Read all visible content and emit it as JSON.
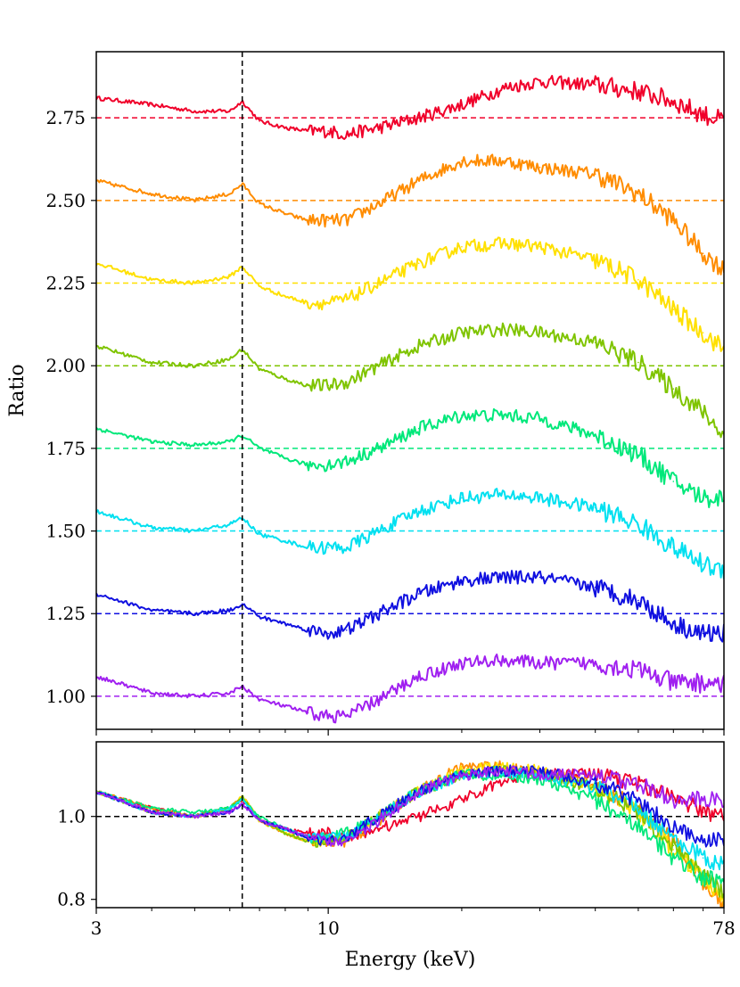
{
  "chart_data": [
    {
      "type": "line",
      "panel": "top",
      "ylabel": "Ratio",
      "xlabel": "",
      "xscale": "log",
      "xlim": [
        3,
        78
      ],
      "ylim": [
        0.9,
        2.95
      ],
      "yticks": [
        1.0,
        1.25,
        1.5,
        1.75,
        2.0,
        2.25,
        2.5,
        2.75
      ],
      "ytick_labels": [
        "1.00",
        "1.25",
        "1.50",
        "1.75",
        "2.00",
        "2.25",
        "2.50",
        "2.75"
      ],
      "xticks": [
        3,
        10,
        78
      ],
      "vline_x": 6.4,
      "x": [
        3,
        4,
        5,
        6,
        6.4,
        7,
        8,
        9,
        10,
        11,
        13,
        16,
        20,
        25,
        30,
        40,
        50,
        60,
        70,
        78
      ],
      "series": [
        {
          "color": "#f0002a",
          "baseline": 2.75,
          "values": [
            2.81,
            2.79,
            2.77,
            2.77,
            2.8,
            2.74,
            2.72,
            2.71,
            2.71,
            2.7,
            2.72,
            2.75,
            2.79,
            2.84,
            2.86,
            2.85,
            2.83,
            2.8,
            2.76,
            2.74
          ]
        },
        {
          "color": "#ff8c00",
          "baseline": 2.5,
          "values": [
            2.56,
            2.52,
            2.5,
            2.52,
            2.55,
            2.49,
            2.46,
            2.44,
            2.44,
            2.44,
            2.49,
            2.56,
            2.62,
            2.62,
            2.6,
            2.58,
            2.52,
            2.44,
            2.34,
            2.29
          ]
        },
        {
          "color": "#ffe000",
          "baseline": 2.25,
          "values": [
            2.31,
            2.26,
            2.25,
            2.27,
            2.3,
            2.24,
            2.21,
            2.19,
            2.19,
            2.2,
            2.25,
            2.31,
            2.36,
            2.37,
            2.36,
            2.32,
            2.26,
            2.17,
            2.1,
            2.05
          ]
        },
        {
          "color": "#7fc400",
          "baseline": 2.0,
          "values": [
            2.06,
            2.01,
            2.0,
            2.02,
            2.05,
            1.99,
            1.96,
            1.94,
            1.94,
            1.95,
            2.0,
            2.06,
            2.1,
            2.11,
            2.1,
            2.07,
            2.01,
            1.93,
            1.86,
            1.79
          ]
        },
        {
          "color": "#00e87a",
          "baseline": 1.75,
          "values": [
            1.81,
            1.77,
            1.76,
            1.77,
            1.79,
            1.75,
            1.72,
            1.7,
            1.7,
            1.71,
            1.75,
            1.81,
            1.85,
            1.85,
            1.84,
            1.79,
            1.73,
            1.65,
            1.6,
            1.6
          ]
        },
        {
          "color": "#00e0f0",
          "baseline": 1.5,
          "values": [
            1.56,
            1.51,
            1.5,
            1.52,
            1.54,
            1.49,
            1.47,
            1.45,
            1.45,
            1.45,
            1.5,
            1.56,
            1.6,
            1.61,
            1.6,
            1.57,
            1.52,
            1.45,
            1.4,
            1.38
          ]
        },
        {
          "color": "#1010e0",
          "baseline": 1.25,
          "values": [
            1.31,
            1.26,
            1.25,
            1.26,
            1.28,
            1.24,
            1.22,
            1.2,
            1.19,
            1.2,
            1.25,
            1.31,
            1.35,
            1.36,
            1.36,
            1.33,
            1.29,
            1.22,
            1.19,
            1.19
          ]
        },
        {
          "color": "#a020f0",
          "baseline": 1.0,
          "values": [
            1.06,
            1.01,
            1.0,
            1.01,
            1.03,
            0.99,
            0.97,
            0.95,
            0.94,
            0.94,
            0.99,
            1.06,
            1.1,
            1.11,
            1.1,
            1.1,
            1.08,
            1.04,
            1.04,
            1.04
          ]
        }
      ]
    },
    {
      "type": "line",
      "panel": "bottom",
      "xlabel": "Energy (keV)",
      "ylabel": "",
      "xscale": "log",
      "xlim": [
        3,
        78
      ],
      "ylim": [
        0.78,
        1.18
      ],
      "yticks": [
        0.8,
        1.0
      ],
      "ytick_labels": [
        "0.8",
        "1.0"
      ],
      "xticks": [
        3,
        10,
        78
      ],
      "xtick_labels": [
        "3",
        "10",
        "78"
      ],
      "vline_x": 6.4,
      "hline_y": 1.0,
      "x": [
        3,
        4,
        5,
        6,
        6.4,
        7,
        8,
        9,
        10,
        11,
        13,
        16,
        20,
        25,
        30,
        40,
        50,
        60,
        70,
        78
      ],
      "series": [
        {
          "color": "#f0002a",
          "values": [
            1.06,
            1.02,
            1.0,
            1.02,
            1.04,
            0.99,
            0.97,
            0.96,
            0.96,
            0.95,
            0.97,
            1.0,
            1.04,
            1.09,
            1.11,
            1.1,
            1.08,
            1.05,
            1.01,
            1.0
          ]
        },
        {
          "color": "#ff8c00",
          "values": [
            1.06,
            1.02,
            1.0,
            1.02,
            1.05,
            0.99,
            0.96,
            0.94,
            0.94,
            0.94,
            0.99,
            1.06,
            1.12,
            1.12,
            1.1,
            1.08,
            1.02,
            0.94,
            0.84,
            0.79
          ]
        },
        {
          "color": "#ffe000",
          "values": [
            1.06,
            1.01,
            1.0,
            1.02,
            1.05,
            0.99,
            0.96,
            0.94,
            0.94,
            0.95,
            1.0,
            1.06,
            1.11,
            1.12,
            1.11,
            1.07,
            1.01,
            0.92,
            0.85,
            0.8
          ]
        },
        {
          "color": "#7fc400",
          "values": [
            1.06,
            1.01,
            1.0,
            1.02,
            1.05,
            0.99,
            0.96,
            0.94,
            0.94,
            0.95,
            1.0,
            1.06,
            1.1,
            1.11,
            1.1,
            1.07,
            1.01,
            0.93,
            0.86,
            0.81
          ]
        },
        {
          "color": "#00e87a",
          "values": [
            1.06,
            1.02,
            1.01,
            1.02,
            1.04,
            1.0,
            0.97,
            0.95,
            0.95,
            0.96,
            1.0,
            1.06,
            1.1,
            1.1,
            1.09,
            1.04,
            0.98,
            0.9,
            0.85,
            0.85
          ]
        },
        {
          "color": "#00e0f0",
          "values": [
            1.06,
            1.01,
            1.0,
            1.02,
            1.04,
            0.99,
            0.97,
            0.95,
            0.95,
            0.95,
            1.0,
            1.06,
            1.1,
            1.11,
            1.1,
            1.07,
            1.02,
            0.95,
            0.9,
            0.88
          ]
        },
        {
          "color": "#1010e0",
          "values": [
            1.06,
            1.01,
            1.0,
            1.01,
            1.03,
            0.99,
            0.97,
            0.95,
            0.94,
            0.95,
            1.0,
            1.06,
            1.1,
            1.11,
            1.11,
            1.08,
            1.04,
            0.97,
            0.94,
            0.94
          ]
        },
        {
          "color": "#a020f0",
          "values": [
            1.06,
            1.01,
            1.0,
            1.01,
            1.03,
            0.99,
            0.97,
            0.95,
            0.94,
            0.94,
            0.99,
            1.06,
            1.1,
            1.11,
            1.1,
            1.1,
            1.08,
            1.04,
            1.04,
            1.04
          ]
        }
      ]
    }
  ]
}
